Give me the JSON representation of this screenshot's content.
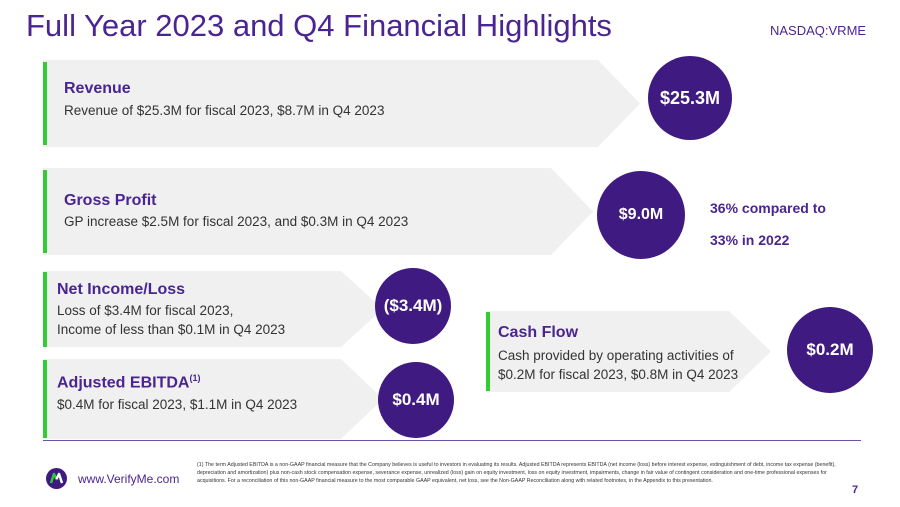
{
  "header": {
    "title": "Full Year 2023 and Q4  Financial Highlights",
    "ticker": "NASDAQ:VRME"
  },
  "revenue": {
    "heading": "Revenue",
    "text": "Revenue of $25.3M for fiscal 2023, $8.7M in Q4 2023",
    "value": "$25.3M"
  },
  "gross_profit": {
    "heading": "Gross Profit",
    "text": "GP increase $2.5M for fiscal 2023, and $0.3M in Q4 2023",
    "value": "$9.0M",
    "note_line1": "36% compared to",
    "note_line2": "33% in 2022"
  },
  "net_income": {
    "heading": "Net Income/Loss",
    "line1": "Loss of $3.4M for fiscal 2023,",
    "line2": "Income of less than $0.1M in Q4 2023",
    "value": "($3.4M)"
  },
  "ebitda": {
    "heading": "Adjusted EBITDA",
    "sup": "(1)",
    "text": "$0.4M for fiscal 2023, $1.1M in Q4 2023",
    "value": "$0.4M"
  },
  "cash_flow": {
    "heading": "Cash Flow",
    "line1": "Cash provided by operating activities of",
    "line2": "$0.2M for fiscal 2023, $0.8M in Q4 2023",
    "value": "$0.2M"
  },
  "footer": {
    "url": "www.VerifyMe.com",
    "page": "7",
    "footnote": "(1) The term Adjusted EBITDA is a non-GAAP financial measure that the Company believes is useful to investors in evaluating its results.  Adjusted EBITDA represents EBITDA (net income (loss) before interest expense, extinguishment of debt, income tax expense (benefit), depreciation and amortization) plus non-cash stock compensation expense, severance expense, unrealized (loss) gain on equity investment, loss on equity investment, impairments, change in fair value of contingent consideration and one-time professional expenses for acquisitions. For a reconciliation of this non-GAAP financial measure to the most comparable GAAP equivalent, net loss, see the Non-GAAP Reconciliation along with related footnotes, in the Appendix to this presentation."
  }
}
